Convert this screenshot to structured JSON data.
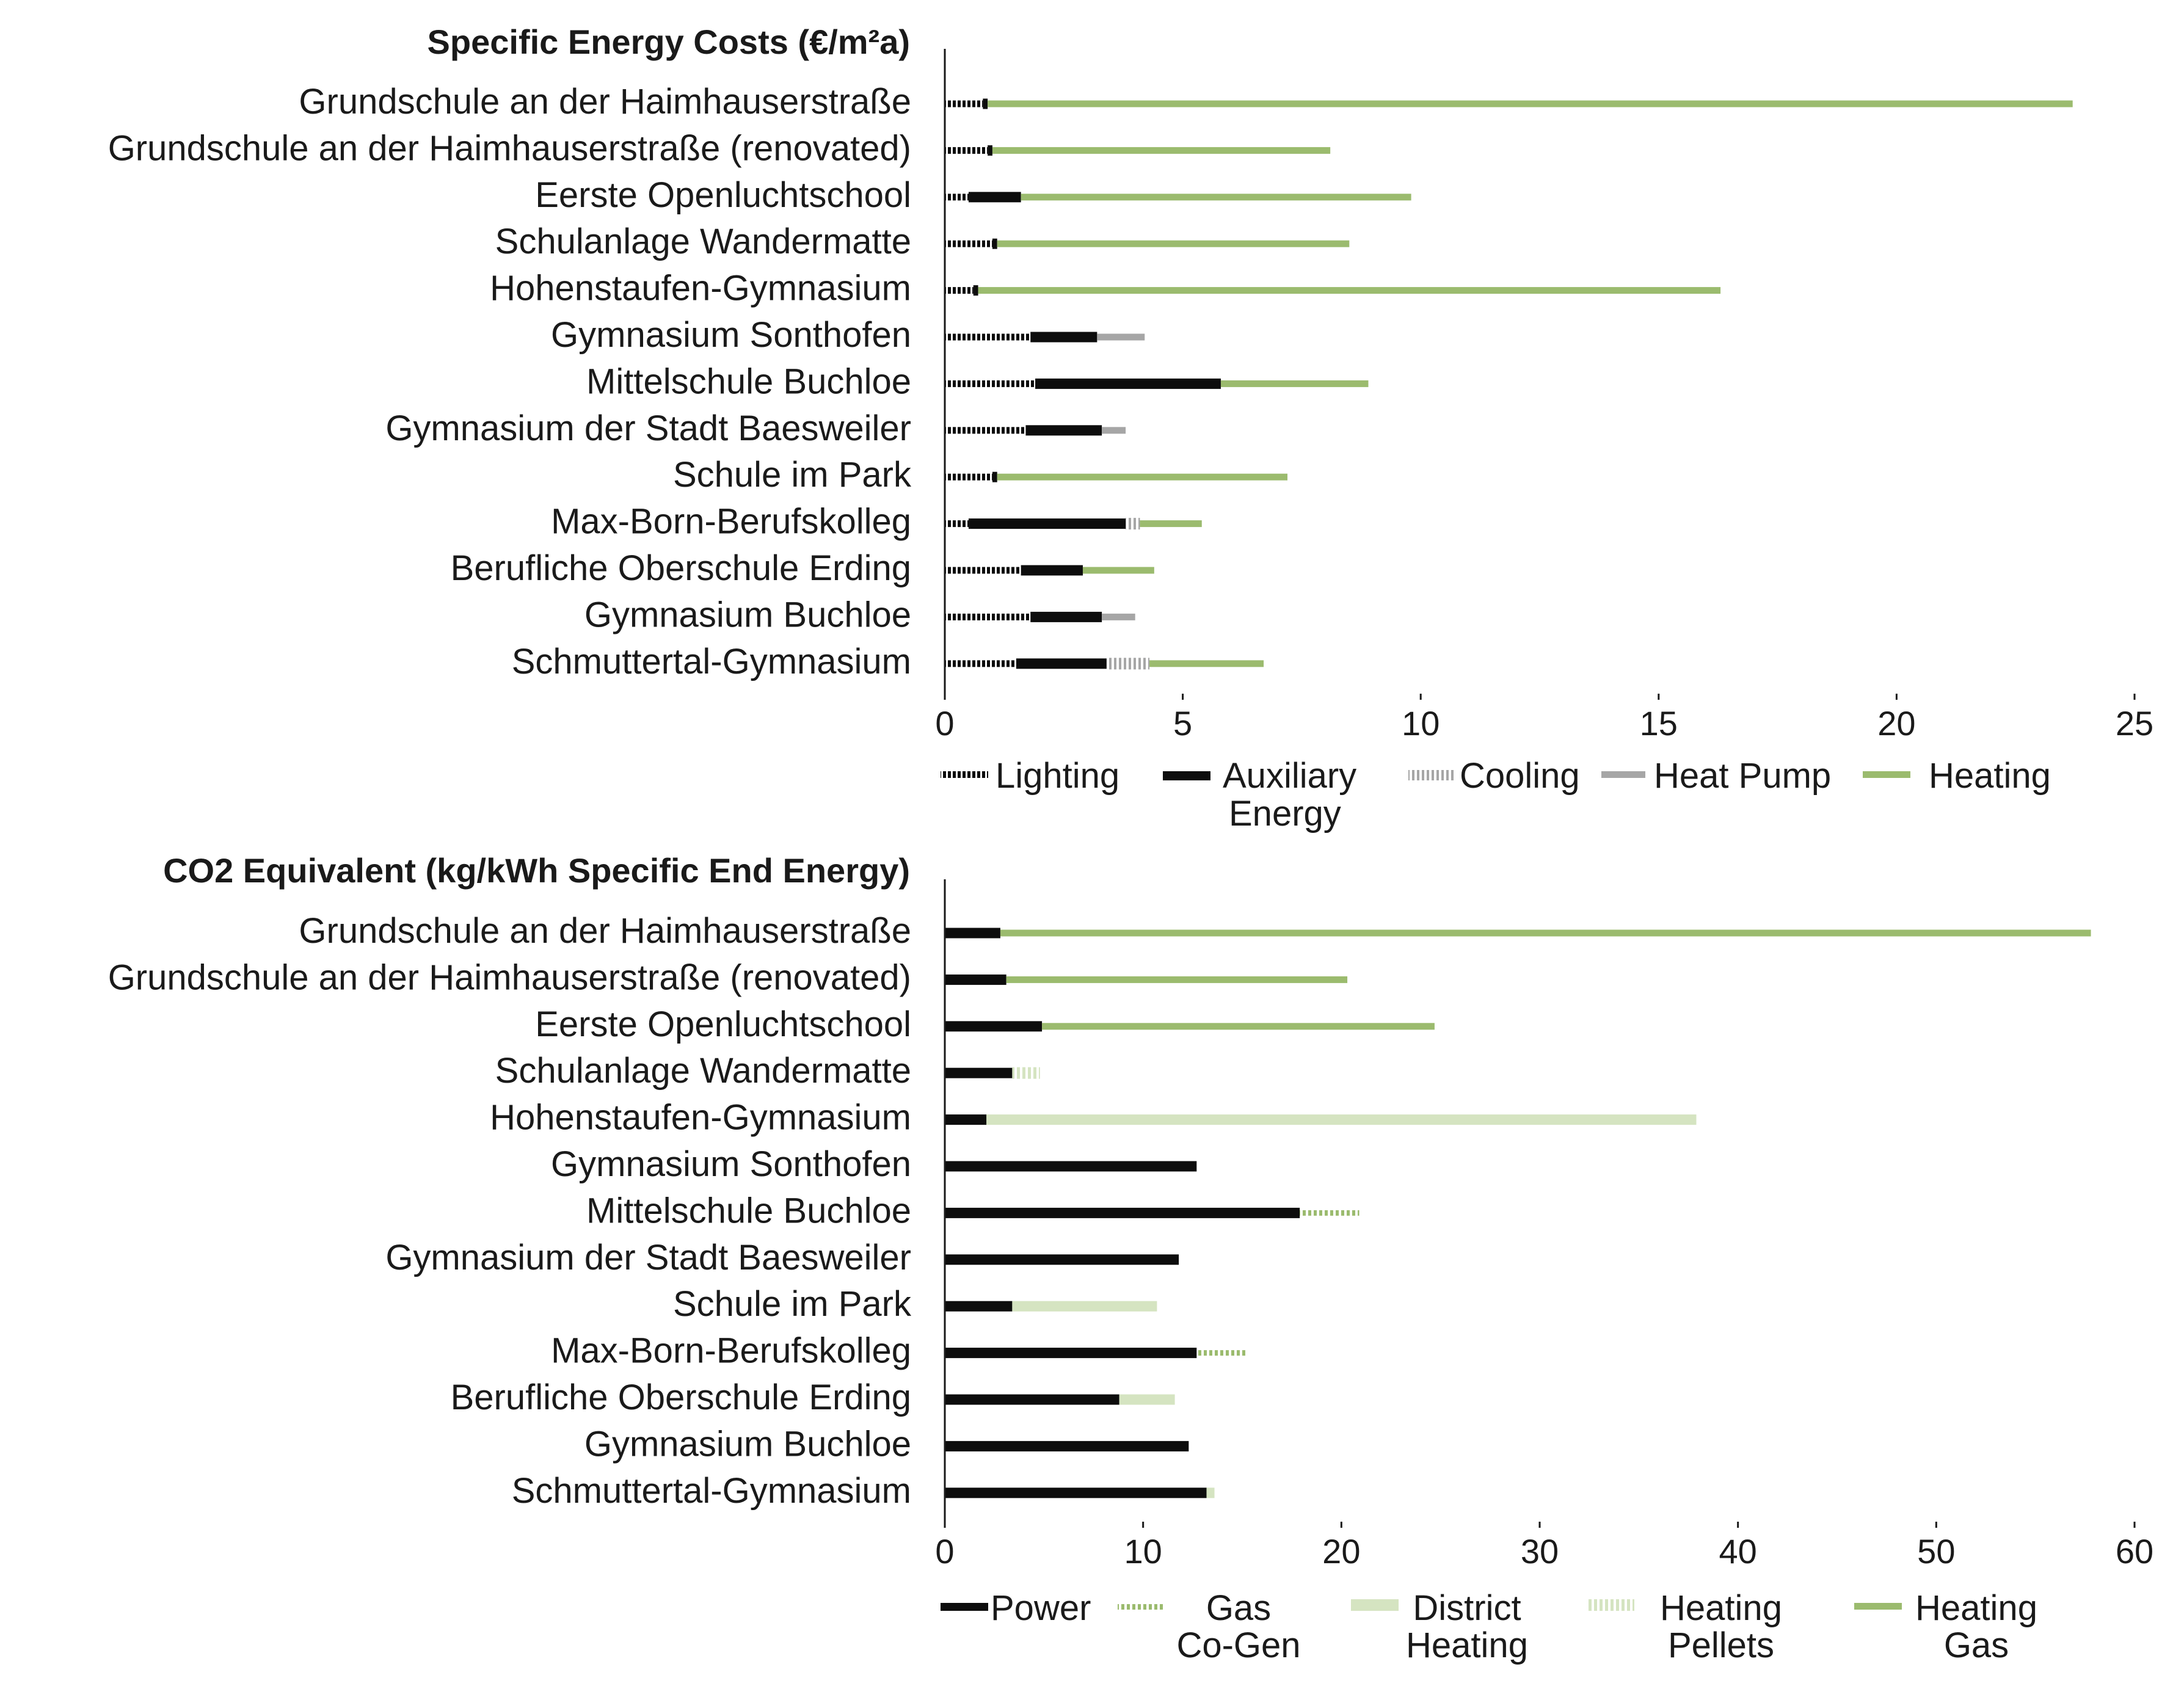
{
  "chart_data": [
    {
      "type": "bar",
      "stacked": true,
      "orientation": "horizontal",
      "title": "Specific Energy Costs (€/m²a)",
      "xlabel": "",
      "ylabel": "",
      "xlim": [
        0,
        25
      ],
      "xticks": [
        0,
        5,
        10,
        15,
        20,
        25
      ],
      "legend_position": "bottom",
      "categories": [
        "Grundschule an der Haimhauserstraße",
        "Grundschule an der Haimhauserstraße (renovated)",
        "Eerste Openluchtschool",
        "Schulanlage Wandermatte",
        "Hohenstaufen-Gymnasium",
        "Gymnasium Sonthofen",
        "Mittelschule Buchloe",
        "Gymnasium der Stadt Baesweiler",
        "Schule im Park",
        "Max-Born-Berufskolleg",
        "Berufliche Oberschule Erding",
        "Gymnasium Buchloe",
        "Schmuttertal-Gymnasium"
      ],
      "series": [
        {
          "name": "Lighting",
          "style": "dotted-black",
          "values": [
            0.8,
            0.9,
            0.5,
            1.0,
            0.6,
            1.8,
            1.9,
            1.7,
            1.0,
            0.5,
            1.6,
            1.8,
            1.5
          ]
        },
        {
          "name": "Auxiliary Energy",
          "style": "solid-black",
          "values": [
            0.1,
            0.1,
            1.1,
            0.1,
            0.1,
            1.4,
            3.9,
            1.6,
            0.1,
            3.3,
            1.3,
            1.5,
            1.9
          ]
        },
        {
          "name": "Cooling",
          "style": "hatched-gray",
          "values": [
            0,
            0,
            0,
            0,
            0,
            0,
            0,
            0,
            0,
            0.3,
            0,
            0,
            0.9
          ]
        },
        {
          "name": "Heat Pump",
          "style": "solid-gray",
          "values": [
            0,
            0,
            0,
            0,
            0,
            1.0,
            0,
            0.5,
            0,
            0,
            0,
            0.7,
            0
          ]
        },
        {
          "name": "Heating",
          "style": "solid-green",
          "values": [
            22.8,
            7.1,
            8.2,
            7.4,
            15.6,
            0,
            3.1,
            0,
            6.1,
            1.3,
            1.5,
            0,
            2.4
          ]
        }
      ],
      "legend": [
        "Lighting",
        "Auxiliary Energy",
        "Cooling",
        "Heat Pump",
        "Heating"
      ]
    },
    {
      "type": "bar",
      "stacked": true,
      "orientation": "horizontal",
      "title": "CO2 Equivalent (kg/kWh Specific End Energy)",
      "xlabel": "",
      "ylabel": "",
      "xlim": [
        0,
        60
      ],
      "xticks": [
        0,
        10,
        20,
        30,
        40,
        50,
        60
      ],
      "legend_position": "bottom",
      "categories": [
        "Grundschule an der Haimhauserstraße",
        "Grundschule an der Haimhauserstraße (renovated)",
        "Eerste Openluchtschool",
        "Schulanlage Wandermatte",
        "Hohenstaufen-Gymnasium",
        "Gymnasium Sonthofen",
        "Mittelschule Buchloe",
        "Gymnasium der Stadt Baesweiler",
        "Schule im Park",
        "Max-Born-Berufskolleg",
        "Berufliche Oberschule Erding",
        "Gymnasium Buchloe",
        "Schmuttertal-Gymnasium"
      ],
      "series": [
        {
          "name": "Power",
          "style": "solid-black",
          "values": [
            2.8,
            3.1,
            4.9,
            3.4,
            2.1,
            12.7,
            17.9,
            11.8,
            3.4,
            12.7,
            8.8,
            12.3,
            13.2
          ]
        },
        {
          "name": "Gas Co-Gen",
          "style": "dotted-green",
          "values": [
            0,
            0,
            0,
            0,
            0,
            0,
            3.0,
            0,
            0,
            2.5,
            0,
            0,
            0
          ]
        },
        {
          "name": "District Heating",
          "style": "solid-lightgreen",
          "values": [
            0,
            0,
            0,
            0,
            35.8,
            0,
            0,
            0,
            7.3,
            0,
            2.8,
            0,
            0.4
          ]
        },
        {
          "name": "Heating Pellets",
          "style": "hatched-lightgreen",
          "values": [
            0,
            0,
            0,
            1.4,
            0,
            0,
            0,
            0,
            0,
            0,
            0,
            0,
            0
          ]
        },
        {
          "name": "Heating Gas",
          "style": "solid-green",
          "values": [
            55.0,
            17.2,
            19.8,
            0,
            0,
            0,
            0,
            0,
            0,
            0,
            0,
            0,
            0
          ]
        }
      ],
      "legend": [
        "Power",
        "Gas Co-Gen",
        "District Heating",
        "Heating Pellets",
        "Heating Gas"
      ]
    }
  ],
  "colors": {
    "black": "#0d0d0d",
    "gray": "#a6a6a6",
    "green": "#9bbb6e",
    "lightgreen": "#d5e4c1",
    "axis": "#1a1a1a"
  }
}
